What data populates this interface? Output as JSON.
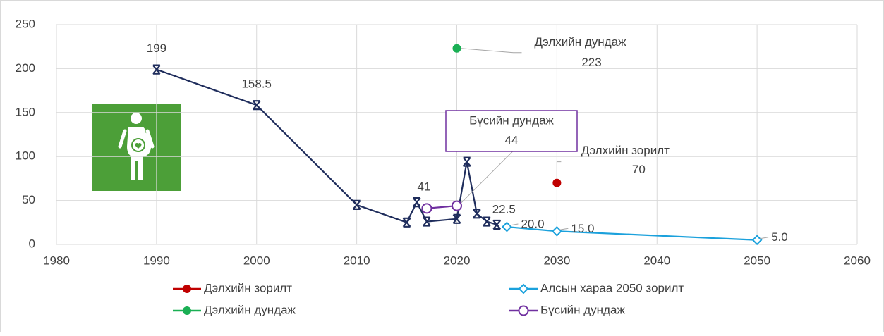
{
  "chart_data": {
    "type": "line",
    "xlim": [
      1980,
      2060
    ],
    "xticks": [
      1980,
      1990,
      2000,
      2010,
      2020,
      2030,
      2040,
      2050,
      2060
    ],
    "ylim": [
      0,
      250
    ],
    "yticks": [
      0,
      50,
      100,
      150,
      200,
      250
    ],
    "grid": true,
    "series": [
      {
        "color": "#1f2d5c",
        "marker": "x",
        "x": [
          1990,
          2000,
          2010,
          2015,
          2016,
          2017,
          2020,
          2021,
          2022,
          2023,
          2024
        ],
        "values": [
          199,
          158.5,
          45,
          25,
          48,
          26,
          29,
          94,
          35,
          26,
          22.5
        ],
        "value_labels": [
          "199",
          "158.5",
          null,
          null,
          null,
          null,
          null,
          null,
          null,
          null,
          "22.5"
        ]
      },
      {
        "name": "Дэлхийн зорилт",
        "color": "#c00000",
        "marker": "circle",
        "x": [
          2030
        ],
        "values": [
          70
        ]
      },
      {
        "name": "Алсын хараа 2050 зорилт",
        "color": "#1ba1dc",
        "marker": "diamond",
        "x": [
          2025,
          2030,
          2050
        ],
        "values": [
          20,
          15,
          5
        ],
        "value_labels": [
          "20.0",
          "15.0",
          "5.0"
        ]
      },
      {
        "name": "Дэлхийн дундаж",
        "color": "#1aaf54",
        "marker": "circle",
        "x": [
          2020
        ],
        "values": [
          223
        ]
      },
      {
        "name": "Бүсийн дундаж",
        "color": "#7030a0",
        "marker": "open-circle",
        "x": [
          2017,
          2020
        ],
        "values": [
          41,
          44
        ]
      }
    ]
  }
}
